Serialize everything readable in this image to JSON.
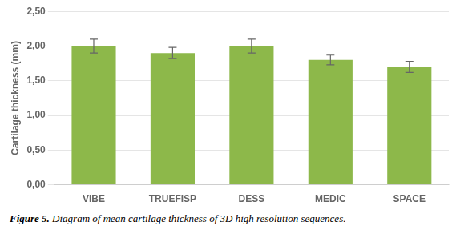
{
  "chart_data": {
    "type": "bar",
    "title": "Figure 5.",
    "subtitle": "Diagram of mean cartilage thickness of 3D high resolution sequences.",
    "categories": [
      "VIBE",
      "TRUEFISP",
      "DESS",
      "MEDIC",
      "SPACE"
    ],
    "values": [
      2.0,
      1.9,
      2.0,
      1.8,
      1.7
    ],
    "errors": [
      0.1,
      0.08,
      0.1,
      0.07,
      0.08
    ],
    "color": "#8DB84A",
    "ylabel": "Cartilage thickness (mm)",
    "ylim": [
      0,
      2.5
    ],
    "yticks": [
      {
        "value": 0.0,
        "label": "0,00"
      },
      {
        "value": 0.5,
        "label": "0,50"
      },
      {
        "value": 1.0,
        "label": "1,00"
      },
      {
        "value": 1.5,
        "label": "1,50"
      },
      {
        "value": 2.0,
        "label": "2,00"
      },
      {
        "value": 2.5,
        "label": "2,50"
      }
    ],
    "grid": true
  }
}
